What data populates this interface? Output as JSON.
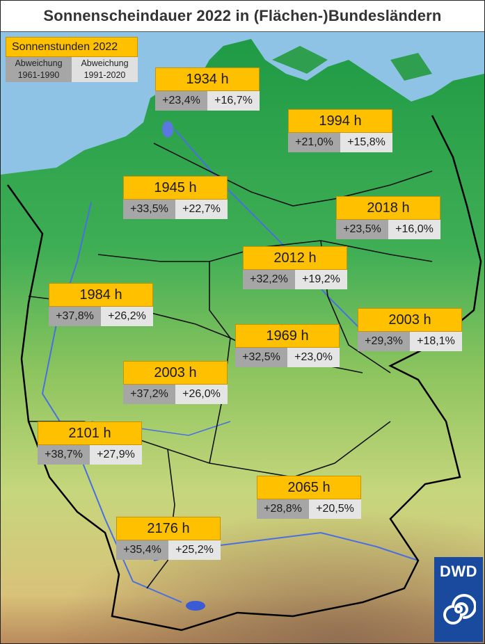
{
  "title": "Sonnenscheindauer 2022 in (Flächen-)Bundesländern",
  "legend": {
    "title": "Sonnenstunden 2022",
    "col1": [
      "Abweichung",
      "1961-1990"
    ],
    "col2": [
      "Abweichung",
      "1991-2020"
    ],
    "col1_color": "#a6a6a6",
    "col2_color": "#e0e0e0",
    "hours_color": "#ffc000"
  },
  "states": [
    {
      "hours": "1934 h",
      "dev_1961_1990": "+23,4%",
      "dev_1991_2020": "+16,7%"
    },
    {
      "hours": "1994 h",
      "dev_1961_1990": "+21,0%",
      "dev_1991_2020": "+15,8%"
    },
    {
      "hours": "1945 h",
      "dev_1961_1990": "+33,5%",
      "dev_1991_2020": "+22,7%"
    },
    {
      "hours": "2018 h",
      "dev_1961_1990": "+23,5%",
      "dev_1991_2020": "+16,0%"
    },
    {
      "hours": "2012 h",
      "dev_1961_1990": "+32,2%",
      "dev_1991_2020": "+19,2%"
    },
    {
      "hours": "1984 h",
      "dev_1961_1990": "+37,8%",
      "dev_1991_2020": "+26,2%"
    },
    {
      "hours": "2003 h",
      "dev_1961_1990": "+29,3%",
      "dev_1991_2020": "+18,1%"
    },
    {
      "hours": "1969 h",
      "dev_1961_1990": "+32,5%",
      "dev_1991_2020": "+23,0%"
    },
    {
      "hours": "2003 h",
      "dev_1961_1990": "+37,2%",
      "dev_1991_2020": "+26,0%"
    },
    {
      "hours": "2101 h",
      "dev_1961_1990": "+38,7%",
      "dev_1991_2020": "+27,9%"
    },
    {
      "hours": "2065 h",
      "dev_1961_1990": "+28,8%",
      "dev_1991_2020": "+20,5%"
    },
    {
      "hours": "2176 h",
      "dev_1961_1990": "+35,4%",
      "dev_1991_2020": "+25,2%"
    }
  ],
  "logo": {
    "text": "DWD",
    "color": "#1a4a9e"
  },
  "colors": {
    "sea": "#8fc3e6",
    "lowland": "#3fae55",
    "hills": "#c8d98a",
    "mountains": "#b88a5a",
    "border": "#111111",
    "river": "#3b5bd6"
  }
}
